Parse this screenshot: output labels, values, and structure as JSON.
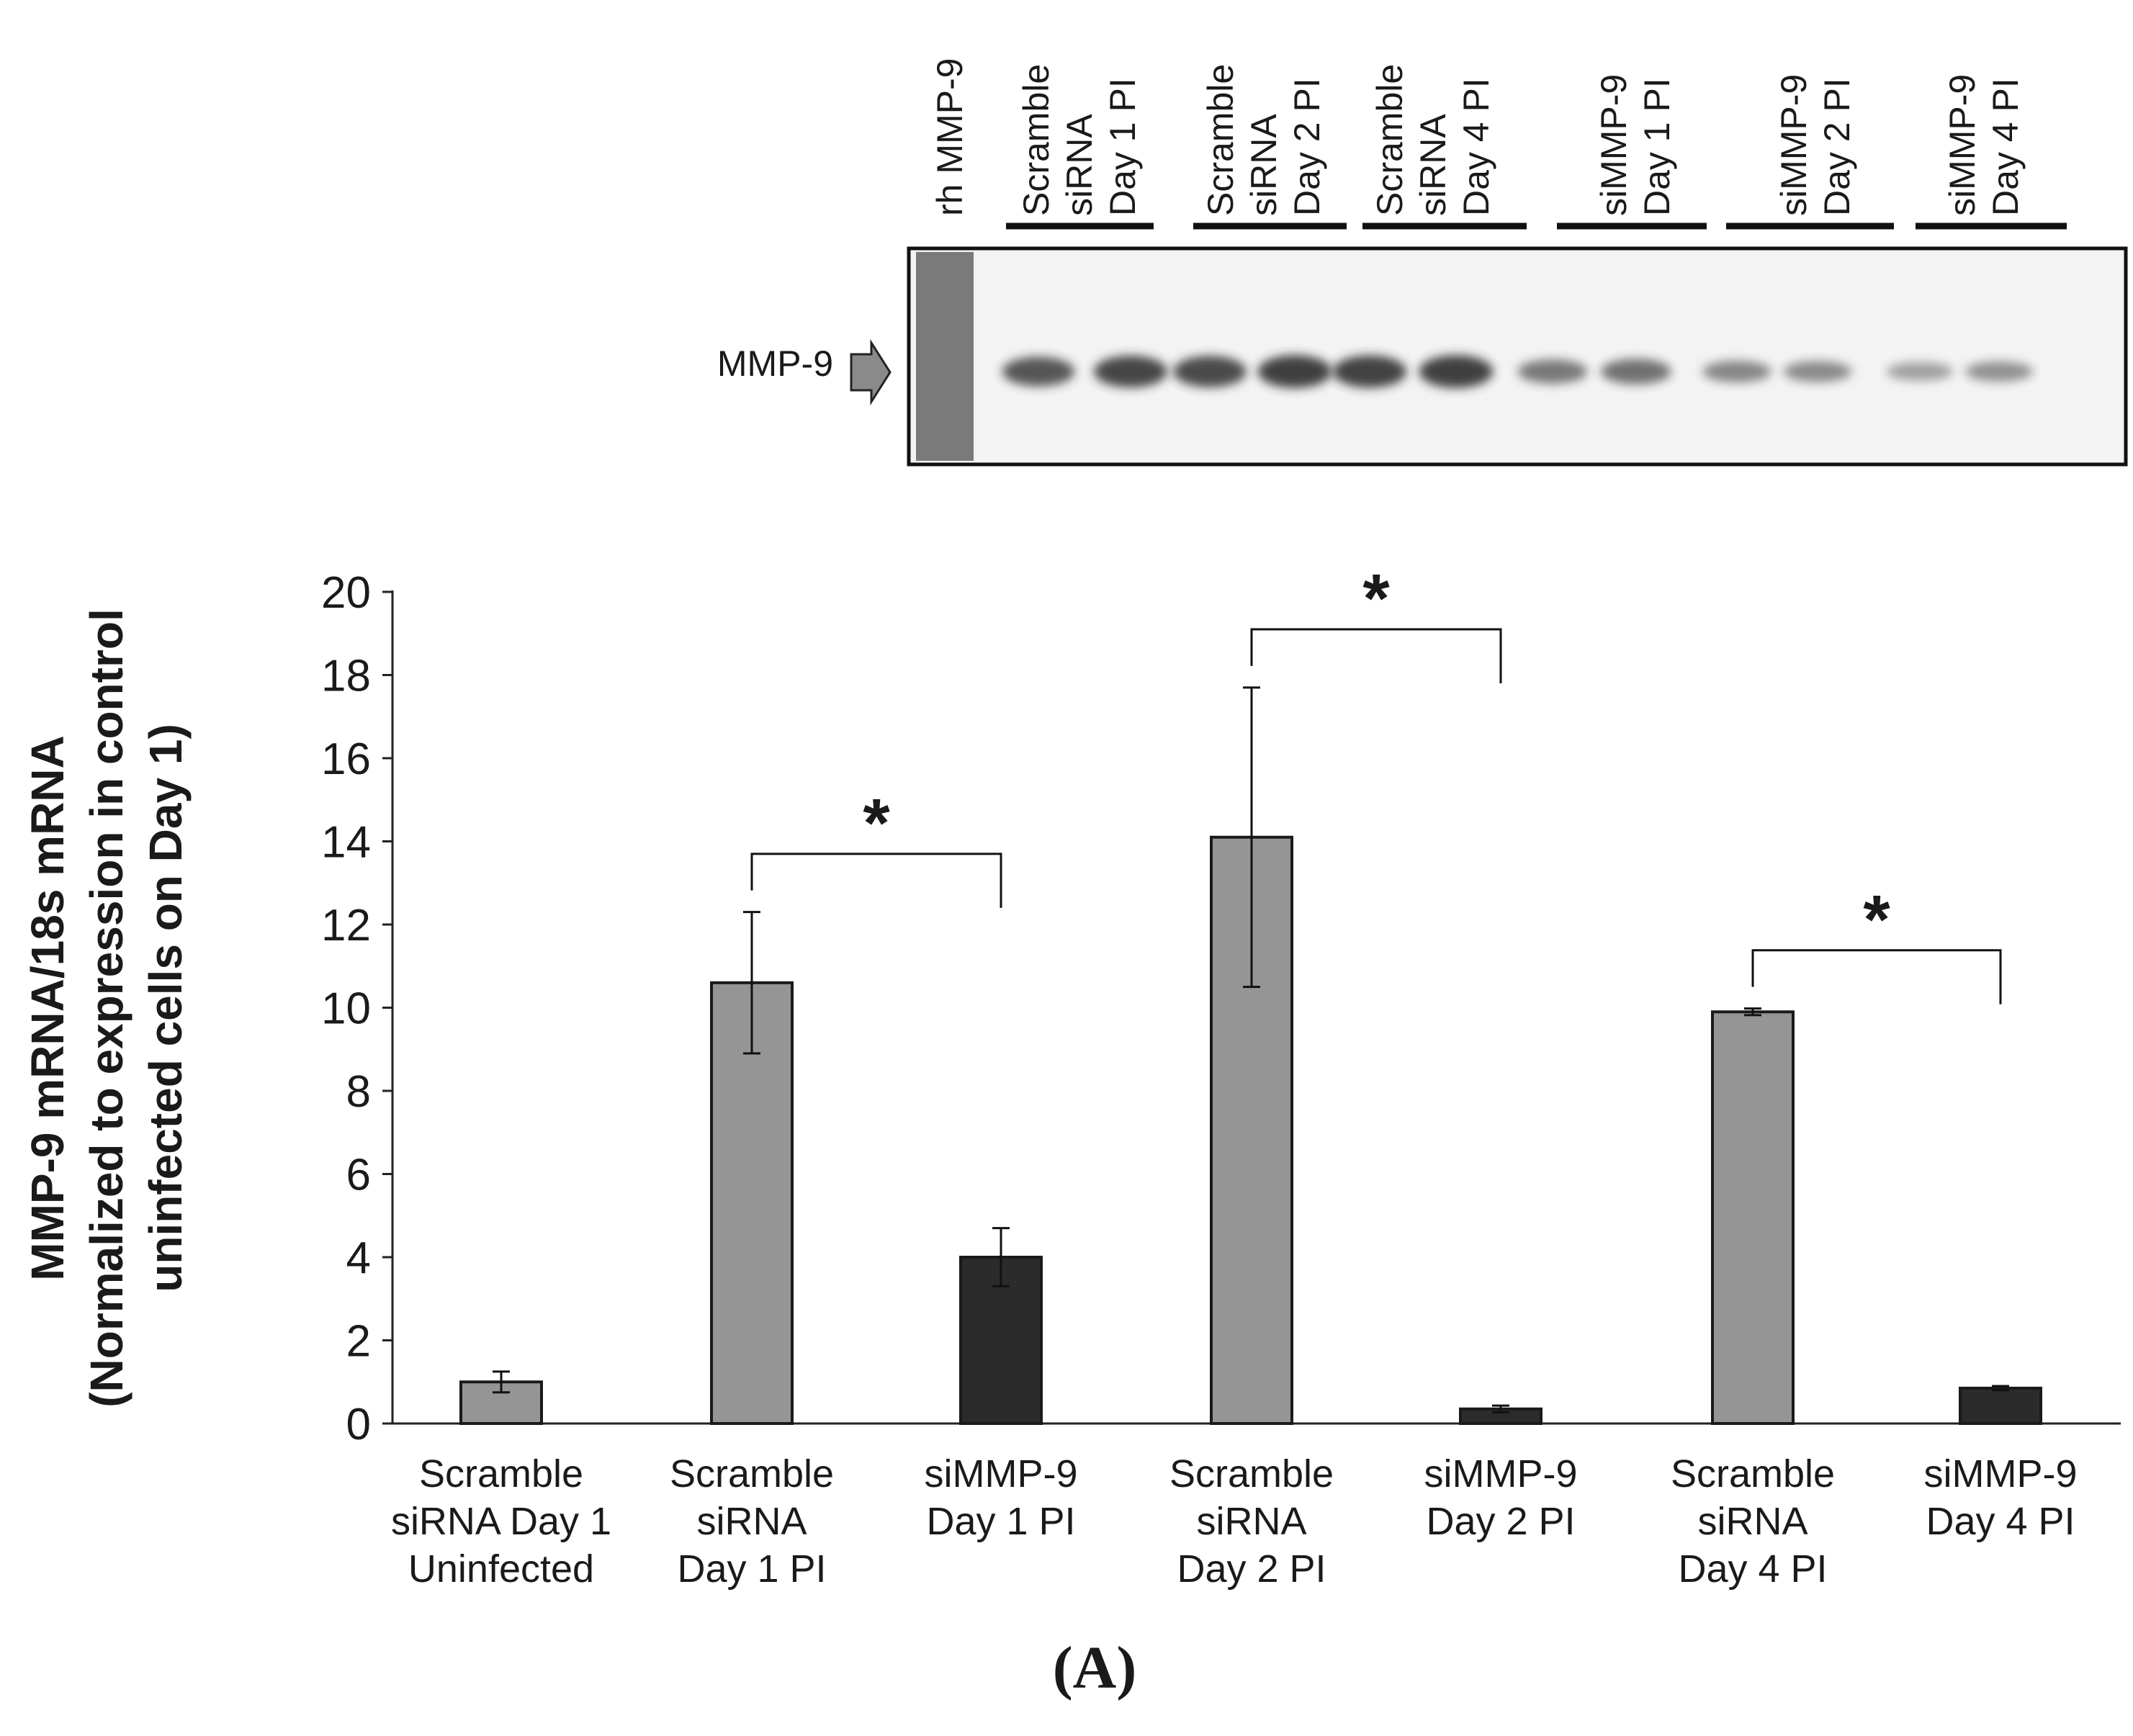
{
  "blot": {
    "target_label": "MMP-9",
    "lane_labels": [
      {
        "lines": [
          "rh MMP-9"
        ]
      },
      {
        "lines": [
          "Scramble",
          "siRNA",
          "Day 1 PI"
        ]
      },
      {
        "lines": [
          "Scramble",
          "siRNA",
          "Day 2 PI"
        ]
      },
      {
        "lines": [
          "Scramble",
          "siRNA",
          "Day 4 PI"
        ]
      },
      {
        "lines": [
          "siMMP-9",
          "Day 1 PI"
        ]
      },
      {
        "lines": [
          "siMMP-9",
          "Day 2 PI"
        ]
      },
      {
        "lines": [
          "siMMP-9",
          "Day 4 PI"
        ]
      }
    ],
    "band_intensity": [
      0.78,
      0.88,
      0.86,
      0.92,
      0.9,
      0.92,
      0.55,
      0.6,
      0.45,
      0.42,
      0.3,
      0.38
    ],
    "colors": {
      "background": "#f3f3f3",
      "marker_lane": "#6d6d6d",
      "band": "#2a2a2a"
    }
  },
  "chart_data": {
    "type": "bar",
    "title": "",
    "ylabel_lines": [
      "MMP-9 mRNA/18s mRNA",
      "(Normalized to expression in control",
      "uninfected cells on Day 1)"
    ],
    "xlabel": "",
    "ylim": [
      0,
      20
    ],
    "yticks": [
      0,
      2,
      4,
      6,
      8,
      10,
      12,
      14,
      16,
      18,
      20
    ],
    "grid": false,
    "categories": [
      {
        "lines": [
          "Scramble",
          "siRNA Day 1",
          "Uninfected"
        ]
      },
      {
        "lines": [
          "Scramble",
          "siRNA",
          "Day 1 PI"
        ]
      },
      {
        "lines": [
          "siMMP-9",
          "Day 1 PI"
        ]
      },
      {
        "lines": [
          "Scramble",
          "siRNA",
          "Day 2 PI"
        ]
      },
      {
        "lines": [
          "siMMP-9",
          "Day 2 PI"
        ]
      },
      {
        "lines": [
          "Scramble",
          "siRNA",
          "Day 4 PI"
        ]
      },
      {
        "lines": [
          "siMMP-9",
          "Day 4 PI"
        ]
      }
    ],
    "values": [
      1.0,
      10.6,
      4.0,
      14.1,
      0.35,
      9.9,
      0.85
    ],
    "errors": [
      0.25,
      1.7,
      0.7,
      3.6,
      0.08,
      0.08,
      0.05
    ],
    "bar_groups": [
      "scramble",
      "scramble",
      "simmp9",
      "scramble",
      "simmp9",
      "scramble",
      "simmp9"
    ],
    "colors": {
      "scramble": "#959595",
      "simmp9": "#2b2b2b",
      "outline": "#1a1a1a"
    },
    "significance": [
      {
        "from": 1,
        "to": 2,
        "label": "*"
      },
      {
        "from": 3,
        "to": 4,
        "label": "*"
      },
      {
        "from": 5,
        "to": 6,
        "label": "*"
      }
    ]
  },
  "panel_label": "(A)"
}
